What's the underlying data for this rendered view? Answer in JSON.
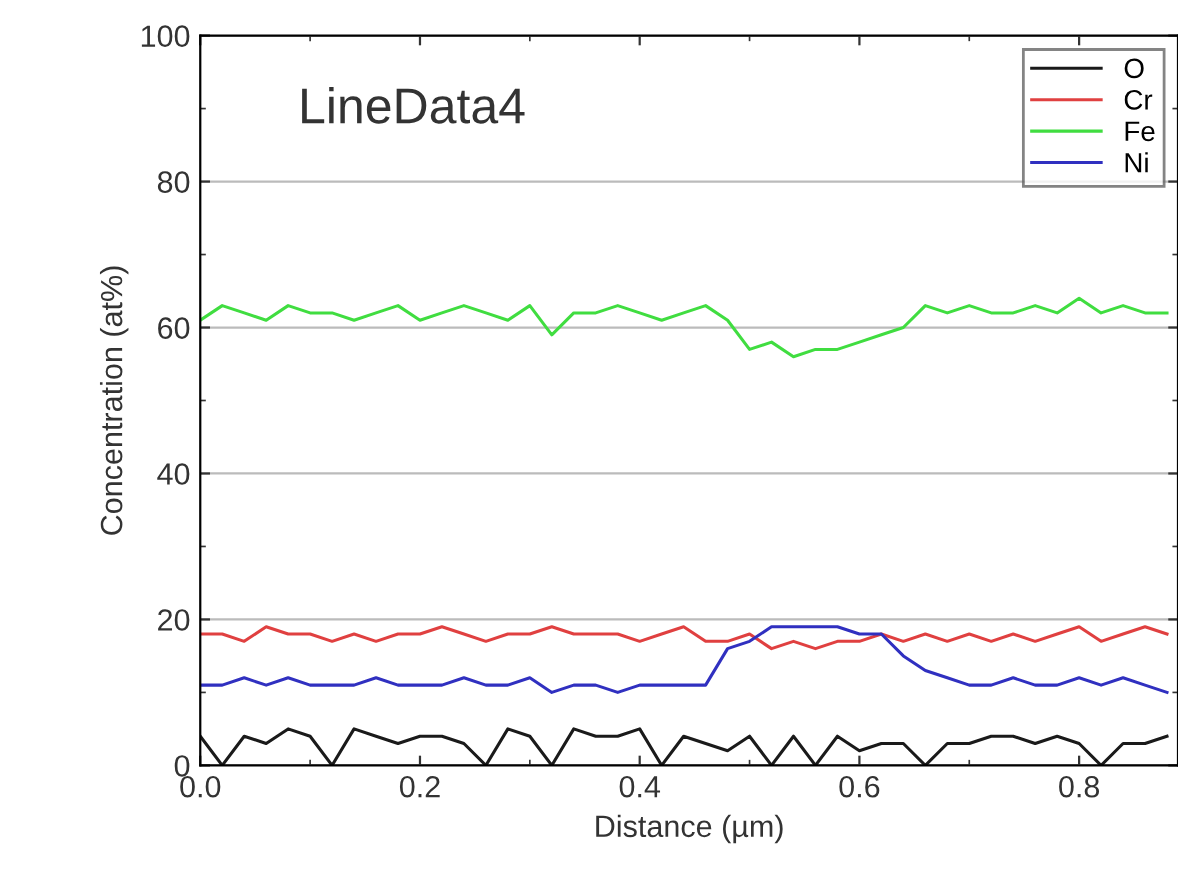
{
  "chart_data": {
    "type": "line",
    "xlabel": "Distance (µm)",
    "ylabel": "Concentration (at%)",
    "annotations": [
      "LineData4"
    ],
    "x": [
      0,
      0.02,
      0.04,
      0.06,
      0.08,
      0.1,
      0.12,
      0.14,
      0.16,
      0.18,
      0.2,
      0.22,
      0.24,
      0.26,
      0.28,
      0.3,
      0.32,
      0.34,
      0.36,
      0.38,
      0.4,
      0.42,
      0.44,
      0.46,
      0.48,
      0.5,
      0.52,
      0.54,
      0.56,
      0.58,
      0.6,
      0.62,
      0.64,
      0.66,
      0.68,
      0.7,
      0.72,
      0.74,
      0.76,
      0.78,
      0.8,
      0.82,
      0.84,
      0.86,
      0.88
    ],
    "series": [
      {
        "name": "O",
        "color": "#1a1a1a",
        "values": [
          4,
          0,
          4,
          3,
          5,
          4,
          0,
          5,
          4,
          3,
          4,
          4,
          3,
          0,
          5,
          4,
          0,
          5,
          4,
          4,
          5,
          0,
          4,
          3,
          2,
          4,
          0,
          4,
          0,
          4,
          2,
          3,
          3,
          0,
          3,
          3,
          4,
          4,
          3,
          4,
          3,
          0,
          3,
          3,
          4
        ]
      },
      {
        "name": "Cr",
        "color": "#e04040",
        "values": [
          18,
          18,
          17,
          19,
          18,
          18,
          17,
          18,
          17,
          18,
          18,
          19,
          18,
          17,
          18,
          18,
          19,
          18,
          18,
          18,
          17,
          18,
          19,
          17,
          17,
          18,
          16,
          17,
          16,
          17,
          17,
          18,
          17,
          18,
          17,
          18,
          17,
          18,
          17,
          18,
          19,
          17,
          18,
          19,
          18
        ]
      },
      {
        "name": "Fe",
        "color": "#40dd40",
        "values": [
          61,
          63,
          62,
          61,
          63,
          62,
          62,
          61,
          62,
          63,
          61,
          62,
          63,
          62,
          61,
          63,
          59,
          62,
          62,
          63,
          62,
          61,
          62,
          63,
          61,
          57,
          58,
          56,
          57,
          57,
          58,
          59,
          60,
          63,
          62,
          63,
          62,
          62,
          63,
          62,
          64,
          62,
          63,
          62,
          62
        ]
      },
      {
        "name": "Ni",
        "color": "#3030c0",
        "values": [
          11,
          11,
          12,
          11,
          12,
          11,
          11,
          11,
          12,
          11,
          11,
          11,
          12,
          11,
          11,
          12,
          10,
          11,
          11,
          10,
          11,
          11,
          11,
          11,
          16,
          17,
          19,
          19,
          19,
          19,
          18,
          18,
          15,
          13,
          12,
          11,
          11,
          12,
          11,
          11,
          12,
          11,
          12,
          11,
          10
        ]
      }
    ],
    "xlim": [
      0,
      0.89
    ],
    "ylim": [
      0,
      100
    ],
    "xticks": [
      {
        "value": 0,
        "label": "0.0"
      },
      0.2,
      0.4,
      0.6,
      0.8
    ],
    "yticks": [
      0,
      20,
      40,
      60,
      80,
      100
    ],
    "grid": "y",
    "legend": "top right",
    "line_style": "solid",
    "marker": "none"
  }
}
